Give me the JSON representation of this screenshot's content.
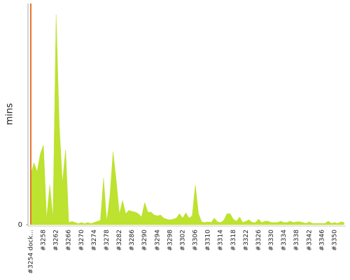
{
  "chart_data": {
    "type": "area",
    "y_label": "mins",
    "categories": [
      "#3254 dock...",
      null,
      null,
      null,
      "#3258",
      null,
      null,
      null,
      "#3262",
      null,
      null,
      null,
      "#3266",
      null,
      null,
      null,
      "#3270",
      null,
      null,
      null,
      "#3274",
      null,
      null,
      null,
      "#3278",
      null,
      null,
      null,
      "#3282",
      null,
      null,
      null,
      "#3286",
      null,
      null,
      null,
      "#3290",
      null,
      null,
      null,
      "#3294",
      null,
      null,
      null,
      "#3298",
      null,
      null,
      null,
      "#3302",
      null,
      null,
      null,
      "#3306",
      null,
      null,
      null,
      "#3310",
      null,
      null,
      null,
      "#3314",
      null,
      null,
      null,
      "#3318",
      null,
      null,
      null,
      "#3322",
      null,
      null,
      null,
      "#3326",
      null,
      null,
      null,
      "#3330",
      null,
      null,
      null,
      "#3334",
      null,
      null,
      null,
      "#3338",
      null,
      null,
      null,
      "#3342",
      null,
      null,
      null,
      "#3346",
      null,
      null,
      null,
      "#3350",
      null,
      null,
      null
    ],
    "values": [
      23,
      28,
      24,
      32,
      36,
      3,
      18,
      3,
      95,
      45,
      19,
      34,
      1,
      1.5,
      1,
      0.5,
      1,
      0.5,
      1,
      0.5,
      1,
      1.5,
      2,
      21,
      1.5,
      13,
      33,
      20,
      5,
      11,
      5,
      6.5,
      6,
      5.7,
      5,
      3.5,
      10,
      5.7,
      5.7,
      4.4,
      4,
      4.4,
      3,
      2.5,
      2.2,
      2.5,
      3,
      5,
      3,
      5.4,
      3,
      4,
      18,
      5,
      1.3,
      1,
      1.3,
      1,
      3,
      1.3,
      1,
      2,
      5,
      5,
      2.5,
      1.6,
      3.5,
      1,
      1.6,
      2.2,
      1,
      1,
      2.5,
      1,
      1.6,
      1.6,
      1,
      1,
      1,
      1.6,
      1,
      1,
      1.6,
      1,
      1.3,
      1.3,
      1,
      0.6,
      1.3,
      0.6,
      0.6,
      0.6,
      0.6,
      0.6,
      1.6,
      0.6,
      1,
      0.6,
      1.3,
      1
    ],
    "color": "#bde22f",
    "ylim": [
      0,
      100
    ],
    "yticks": [
      0
    ]
  }
}
